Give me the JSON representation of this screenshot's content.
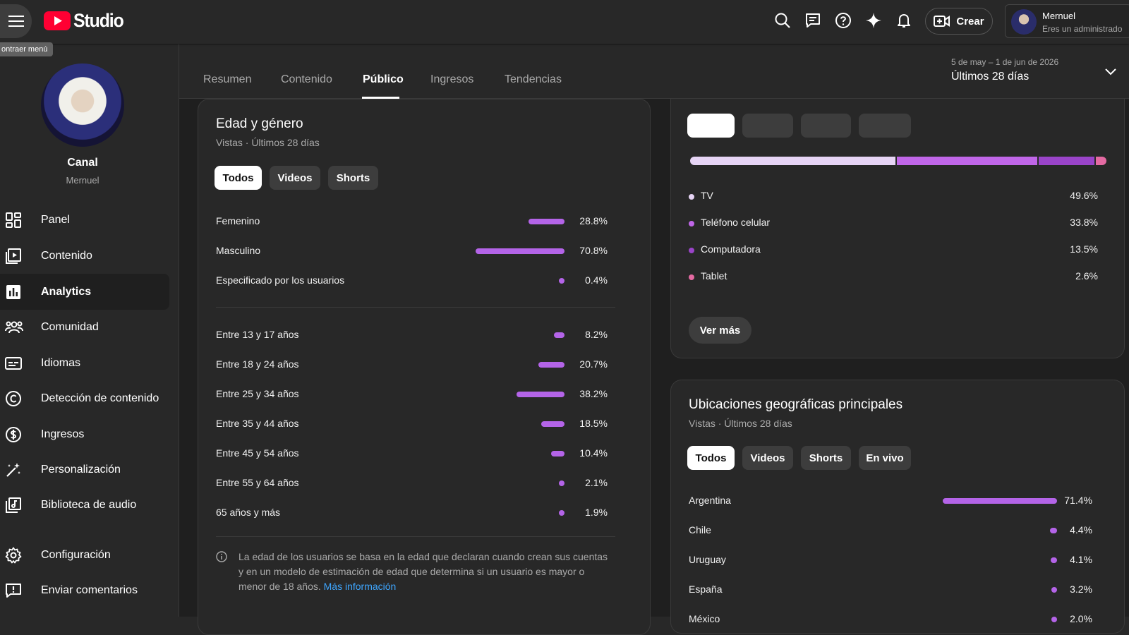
{
  "header": {
    "logo_text": "Studio",
    "tooltip": "ontraer menú",
    "create_label": "Crear",
    "account_name": "Mernuel",
    "account_role": "Eres un administrado"
  },
  "sidebar": {
    "channel_title": "Canal",
    "channel_name": "Mernuel",
    "items": [
      {
        "label": "Panel"
      },
      {
        "label": "Contenido"
      },
      {
        "label": "Analytics"
      },
      {
        "label": "Comunidad"
      },
      {
        "label": "Idiomas"
      },
      {
        "label": "Detección de contenido"
      },
      {
        "label": "Ingresos"
      },
      {
        "label": "Personalización"
      },
      {
        "label": "Biblioteca de audio"
      },
      {
        "label": "Configuración"
      },
      {
        "label": "Enviar comentarios"
      }
    ]
  },
  "tabs": [
    "Resumen",
    "Contenido",
    "Público",
    "Ingresos",
    "Tendencias"
  ],
  "date": {
    "range": "5 de may – 1 de jun de 2026",
    "label": "Últimos 28 días"
  },
  "age_gender": {
    "title": "Edad y género",
    "subtitle": "Vistas · Últimos 28 días",
    "chips": [
      "Todos",
      "Videos",
      "Shorts"
    ],
    "gender": [
      {
        "label": "Femenino",
        "value": "28.8%",
        "pct": 28.8
      },
      {
        "label": "Masculino",
        "value": "70.8%",
        "pct": 70.8
      },
      {
        "label": "Especificado por los usuarios",
        "value": "0.4%",
        "pct": 0.4
      }
    ],
    "age": [
      {
        "label": "Entre 13 y 17 años",
        "value": "8.2%",
        "pct": 8.2
      },
      {
        "label": "Entre 18 y 24 años",
        "value": "20.7%",
        "pct": 20.7
      },
      {
        "label": "Entre 25 y 34 años",
        "value": "38.2%",
        "pct": 38.2
      },
      {
        "label": "Entre 35 y 44 años",
        "value": "18.5%",
        "pct": 18.5
      },
      {
        "label": "Entre 45 y 54 años",
        "value": "10.4%",
        "pct": 10.4
      },
      {
        "label": "Entre 55 y 64 años",
        "value": "2.1%",
        "pct": 2.1
      },
      {
        "label": "65 años y más",
        "value": "1.9%",
        "pct": 1.9
      }
    ],
    "note": "La edad de los usuarios se basa en la edad que declaran cuando crean sus cuentas y en un modelo de estimación de edad que determina si un usuario es mayor o menor de 18 años.",
    "note_link": "Más información"
  },
  "devices": {
    "items": [
      {
        "label": "TV",
        "value": "49.6%",
        "pct": 49.6,
        "color": "#e6d4f5"
      },
      {
        "label": "Teléfono celular",
        "value": "33.8%",
        "pct": 33.8,
        "color": "#c066e8"
      },
      {
        "label": "Computadora",
        "value": "13.5%",
        "pct": 13.5,
        "color": "#9a44c9"
      },
      {
        "label": "Tablet",
        "value": "2.6%",
        "pct": 2.6,
        "color": "#e46aa2"
      }
    ],
    "more_label": "Ver más"
  },
  "geo": {
    "title": "Ubicaciones geográficas principales",
    "subtitle": "Vistas · Últimos 28 días",
    "chips": [
      "Todos",
      "Videos",
      "Shorts",
      "En vivo"
    ],
    "rows": [
      {
        "label": "Argentina",
        "value": "71.4%",
        "pct": 71.4
      },
      {
        "label": "Chile",
        "value": "4.4%",
        "pct": 4.4
      },
      {
        "label": "Uruguay",
        "value": "4.1%",
        "pct": 4.1
      },
      {
        "label": "España",
        "value": "3.2%",
        "pct": 3.2
      },
      {
        "label": "México",
        "value": "2.0%",
        "pct": 2.0
      }
    ]
  }
}
